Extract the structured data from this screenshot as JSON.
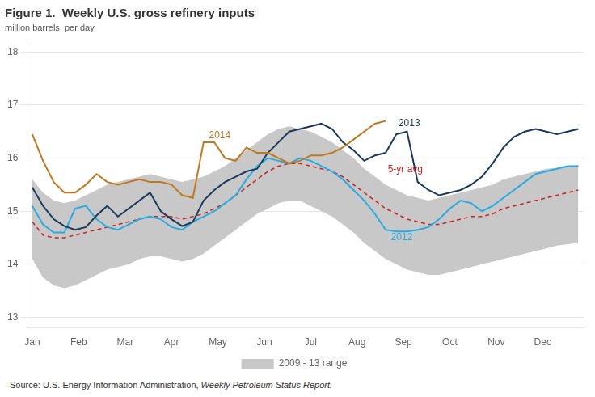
{
  "chart_data": {
    "type": "line",
    "title": "Figure 1.  Weekly U.S. gross refinery inputs",
    "subtitle": "million barrels  per day",
    "source": [
      "Source: U.S. Energy Information Administration,",
      " Weekly Petroleum Status Report."
    ],
    "x": [
      0,
      1,
      2,
      3,
      4,
      5,
      6,
      7,
      8,
      9,
      10,
      11,
      12,
      13,
      14,
      15,
      16,
      17,
      18,
      19,
      20,
      21,
      22,
      23,
      24,
      25,
      26,
      27,
      28,
      29,
      30,
      31,
      32,
      33,
      34,
      35,
      36,
      37,
      38,
      39,
      40,
      41,
      42,
      43,
      44,
      45,
      46,
      47,
      48,
      49,
      50,
      51
    ],
    "xlim": [
      -0.5,
      51.5
    ],
    "xticks": [
      {
        "value": 0,
        "label": "Jan"
      },
      {
        "value": 4.33,
        "label": "Feb"
      },
      {
        "value": 8.67,
        "label": "Mar"
      },
      {
        "value": 13,
        "label": "Apr"
      },
      {
        "value": 17.33,
        "label": "May"
      },
      {
        "value": 21.67,
        "label": "Jun"
      },
      {
        "value": 26,
        "label": "Jul"
      },
      {
        "value": 30.33,
        "label": "Aug"
      },
      {
        "value": 34.67,
        "label": "Sep"
      },
      {
        "value": 39,
        "label": "Oct"
      },
      {
        "value": 43.33,
        "label": "Nov"
      },
      {
        "value": 47.67,
        "label": "Dec"
      }
    ],
    "ylim": [
      12.8,
      18.2
    ],
    "yticks": [
      13,
      14,
      15,
      16,
      17,
      18
    ],
    "grid": "y",
    "legend": "bottom",
    "series": [
      {
        "name": "2009 - 13 range",
        "type": "area",
        "color": "#c8c8c8",
        "low": [
          14.1,
          13.75,
          13.6,
          13.55,
          13.6,
          13.7,
          13.8,
          13.9,
          13.95,
          14.0,
          14.1,
          14.15,
          14.15,
          14.1,
          14.05,
          14.1,
          14.2,
          14.35,
          14.5,
          14.65,
          14.8,
          14.95,
          15.05,
          15.15,
          15.2,
          15.2,
          15.1,
          15.0,
          14.9,
          14.75,
          14.6,
          14.4,
          14.25,
          14.1,
          14.0,
          13.9,
          13.85,
          13.8,
          13.8,
          13.85,
          13.9,
          13.95,
          14.0,
          14.05,
          14.1,
          14.15,
          14.2,
          14.25,
          14.3,
          14.35,
          14.38,
          14.4
        ],
        "high": [
          15.6,
          15.35,
          15.2,
          15.15,
          15.2,
          15.3,
          15.4,
          15.5,
          15.55,
          15.6,
          15.65,
          15.7,
          15.65,
          15.6,
          15.55,
          15.6,
          15.65,
          15.75,
          15.85,
          16.0,
          16.15,
          16.3,
          16.45,
          16.55,
          16.6,
          16.55,
          16.5,
          16.4,
          16.3,
          16.15,
          16.0,
          15.8,
          15.65,
          15.5,
          15.4,
          15.3,
          15.25,
          15.2,
          15.25,
          15.3,
          15.35,
          15.4,
          15.45,
          15.5,
          15.6,
          15.65,
          15.7,
          15.75,
          15.8,
          15.82,
          15.85,
          15.87
        ]
      },
      {
        "name": "5-yr avg",
        "color": "#cc2222",
        "line_style": "dashed",
        "values": [
          14.8,
          14.55,
          14.5,
          14.5,
          14.55,
          14.6,
          14.65,
          14.7,
          14.75,
          14.8,
          14.85,
          14.9,
          14.9,
          14.9,
          14.85,
          14.9,
          14.95,
          15.05,
          15.15,
          15.3,
          15.45,
          15.6,
          15.75,
          15.85,
          15.9,
          15.9,
          15.85,
          15.8,
          15.75,
          15.65,
          15.5,
          15.35,
          15.2,
          15.05,
          14.95,
          14.85,
          14.8,
          14.75,
          14.75,
          14.8,
          14.85,
          14.9,
          14.9,
          14.95,
          15.05,
          15.1,
          15.15,
          15.2,
          15.25,
          15.3,
          15.35,
          15.4
        ]
      },
      {
        "name": "2012",
        "color": "#29abe2",
        "values": [
          15.1,
          14.75,
          14.6,
          14.6,
          15.05,
          15.1,
          14.85,
          14.7,
          14.65,
          14.75,
          14.85,
          14.9,
          14.85,
          14.7,
          14.65,
          14.8,
          14.9,
          15.0,
          15.15,
          15.3,
          15.6,
          15.85,
          16.0,
          15.95,
          15.9,
          16.0,
          15.95,
          15.85,
          15.75,
          15.6,
          15.4,
          15.2,
          14.95,
          14.65,
          14.62,
          14.62,
          14.65,
          14.7,
          14.85,
          15.05,
          15.2,
          15.15,
          15.0,
          15.1,
          15.25,
          15.4,
          15.55,
          15.7,
          15.75,
          15.8,
          15.85,
          15.85
        ]
      },
      {
        "name": "2013",
        "color": "#1a3a5c",
        "values": [
          15.45,
          15.1,
          14.85,
          14.72,
          14.65,
          14.7,
          14.92,
          15.1,
          14.9,
          15.05,
          15.2,
          15.35,
          15.0,
          14.85,
          14.72,
          14.8,
          15.2,
          15.4,
          15.55,
          15.65,
          15.75,
          15.8,
          16.1,
          16.3,
          16.5,
          16.55,
          16.6,
          16.65,
          16.55,
          16.3,
          16.15,
          15.95,
          16.05,
          16.1,
          16.45,
          16.5,
          15.55,
          15.4,
          15.3,
          15.35,
          15.4,
          15.5,
          15.65,
          15.9,
          16.2,
          16.4,
          16.5,
          16.55,
          16.5,
          16.45,
          16.5,
          16.55
        ]
      },
      {
        "name": "2014",
        "color": "#c07820",
        "values": [
          16.45,
          15.95,
          15.55,
          15.35,
          15.35,
          15.5,
          15.7,
          15.55,
          15.5,
          15.55,
          15.6,
          15.55,
          15.55,
          15.5,
          15.3,
          15.25,
          16.3,
          16.3,
          16.0,
          15.95,
          16.2,
          16.1,
          16.1,
          16.0,
          15.9,
          15.95,
          16.05,
          16.05,
          16.1,
          16.2,
          16.35,
          16.5,
          16.65,
          16.7,
          null,
          null,
          null,
          null,
          null,
          null,
          null,
          null,
          null,
          null,
          null,
          null,
          null,
          null,
          null,
          null,
          null,
          null
        ]
      }
    ],
    "annotations": [
      {
        "text": "2013",
        "x": 34.2,
        "y": 16.6
      },
      {
        "text": "2012",
        "x": 33.5,
        "y": 14.45
      },
      {
        "text": "2014",
        "x": 16.5,
        "y": 16.38
      },
      {
        "text": "5-yr avg",
        "x": 33.2,
        "y": 15.73
      }
    ]
  }
}
